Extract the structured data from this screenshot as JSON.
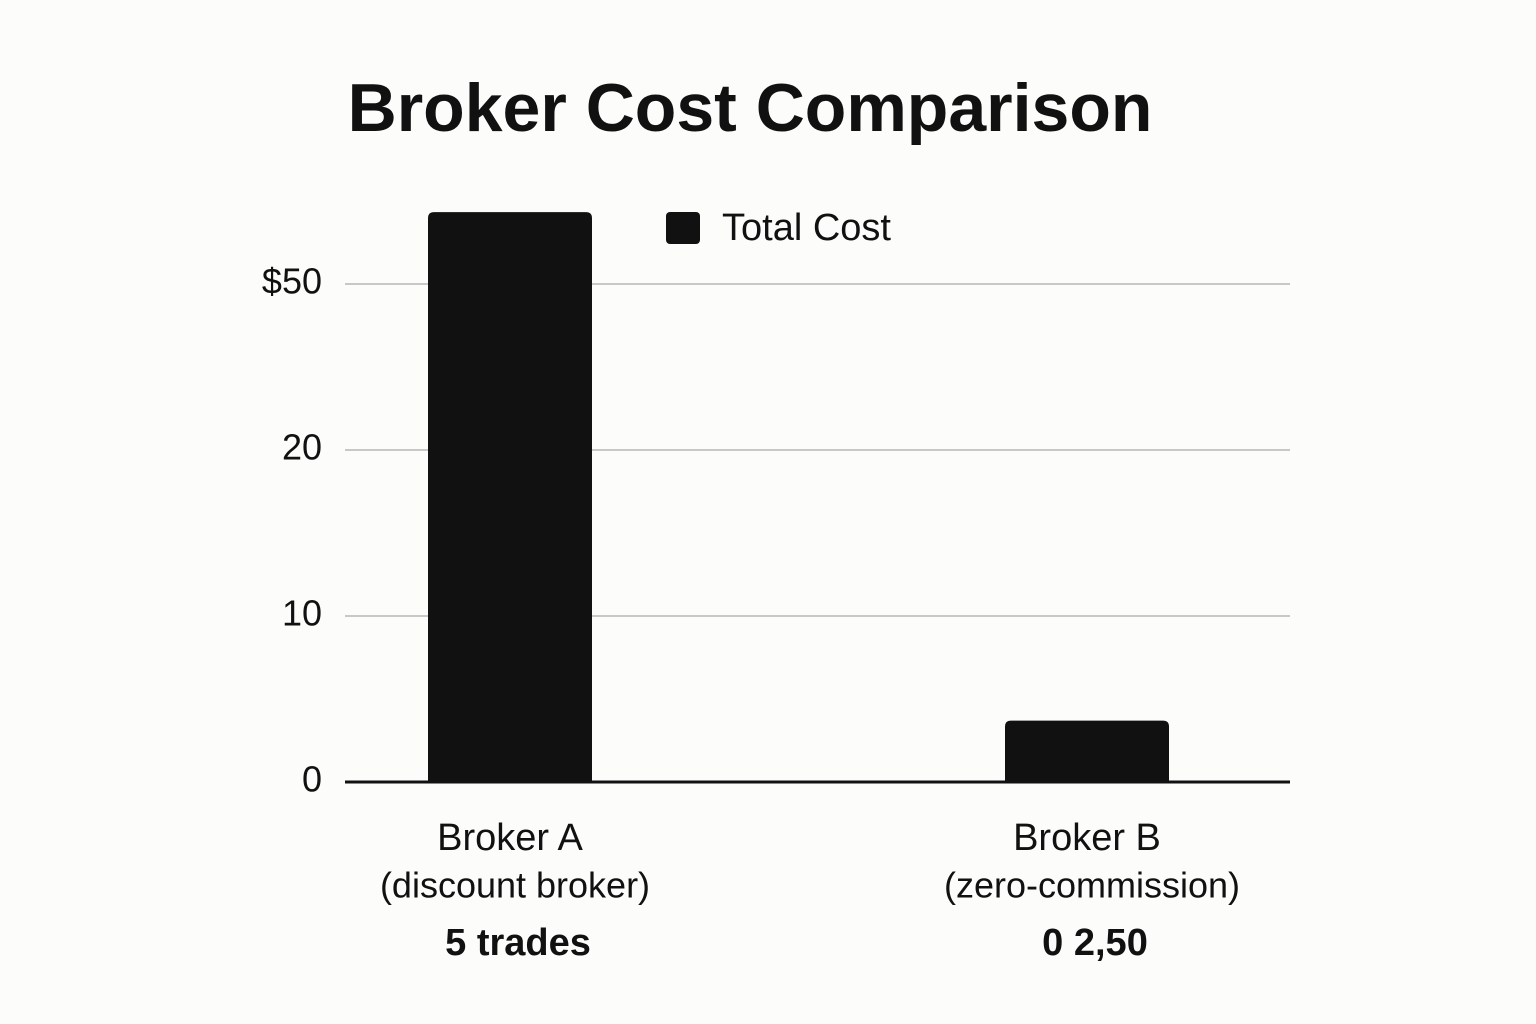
{
  "chart_data": {
    "type": "bar",
    "title": "Broker Cost Comparison",
    "categories": [
      "Broker A",
      "Broker B"
    ],
    "category_subtitles": [
      "(discount broker)",
      "(zero-commission)"
    ],
    "category_notes": [
      "5 trades",
      "0 2,50"
    ],
    "series": [
      {
        "name": "Total Cost",
        "color": "#111111",
        "values": [
          63,
          3.7
        ]
      }
    ],
    "ylim": [
      0,
      65
    ],
    "yticks": [
      0,
      10,
      20,
      {
        "value": 50,
        "label": "$50"
      }
    ],
    "grid": true,
    "legend": "top"
  }
}
